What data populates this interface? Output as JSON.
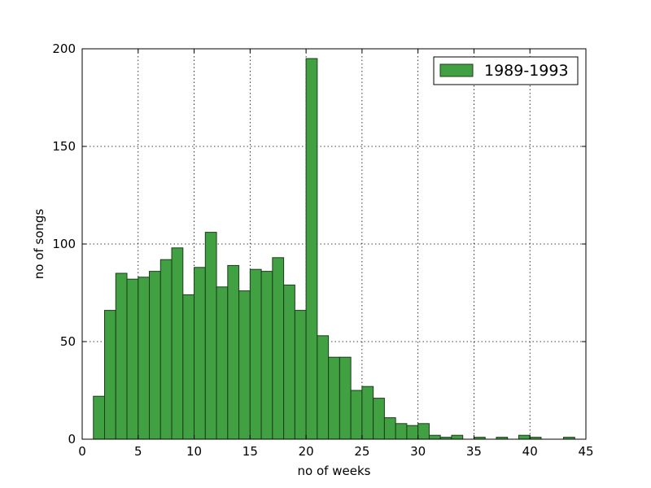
{
  "chart_data": {
    "type": "bar",
    "title": "",
    "xlabel": "no of weeks",
    "ylabel": "no of songs",
    "xlim": [
      0,
      45
    ],
    "ylim": [
      0,
      200
    ],
    "x_ticks": [
      0,
      5,
      10,
      15,
      20,
      25,
      30,
      35,
      40,
      45
    ],
    "y_ticks": [
      0,
      50,
      100,
      150,
      200
    ],
    "grid": true,
    "legend_position": "top-right",
    "bin_width": 1,
    "series": [
      {
        "name": "1989-1993",
        "color": "#41a142",
        "bins": [
          {
            "x": 1,
            "value": 22
          },
          {
            "x": 2,
            "value": 66
          },
          {
            "x": 3,
            "value": 85
          },
          {
            "x": 4,
            "value": 82
          },
          {
            "x": 5,
            "value": 83
          },
          {
            "x": 6,
            "value": 86
          },
          {
            "x": 7,
            "value": 92
          },
          {
            "x": 8,
            "value": 98
          },
          {
            "x": 9,
            "value": 74
          },
          {
            "x": 10,
            "value": 88
          },
          {
            "x": 11,
            "value": 106
          },
          {
            "x": 12,
            "value": 78
          },
          {
            "x": 13,
            "value": 89
          },
          {
            "x": 14,
            "value": 76
          },
          {
            "x": 15,
            "value": 87
          },
          {
            "x": 16,
            "value": 86
          },
          {
            "x": 17,
            "value": 93
          },
          {
            "x": 18,
            "value": 79
          },
          {
            "x": 19,
            "value": 66
          },
          {
            "x": 20,
            "value": 195
          },
          {
            "x": 21,
            "value": 53
          },
          {
            "x": 22,
            "value": 42
          },
          {
            "x": 23,
            "value": 42
          },
          {
            "x": 24,
            "value": 25
          },
          {
            "x": 25,
            "value": 27
          },
          {
            "x": 26,
            "value": 21
          },
          {
            "x": 27,
            "value": 11
          },
          {
            "x": 28,
            "value": 8
          },
          {
            "x": 29,
            "value": 7
          },
          {
            "x": 30,
            "value": 8
          },
          {
            "x": 31,
            "value": 2
          },
          {
            "x": 32,
            "value": 1
          },
          {
            "x": 33,
            "value": 2
          },
          {
            "x": 35,
            "value": 1
          },
          {
            "x": 37,
            "value": 1
          },
          {
            "x": 39,
            "value": 2
          },
          {
            "x": 40,
            "value": 1
          },
          {
            "x": 43,
            "value": 1
          }
        ]
      }
    ]
  }
}
